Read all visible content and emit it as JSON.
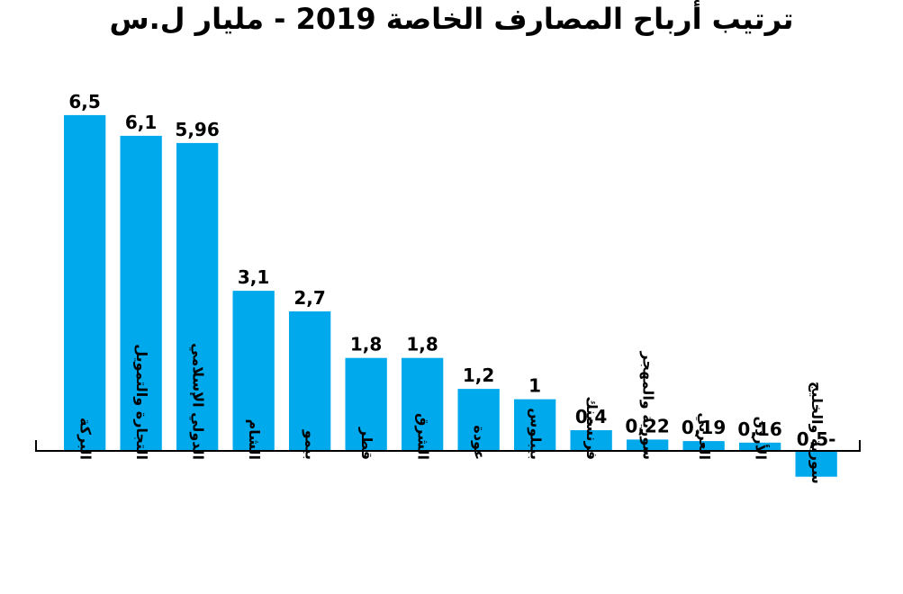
{
  "chart_data": {
    "type": "bar",
    "title": "ترتيب أرباح المصارف الخاصة 2019 - مليار ل.س",
    "xlabel": "",
    "ylabel": "",
    "ylim": [
      -0.7,
      7.0
    ],
    "grid": false,
    "bar_color": "#00a9ec",
    "categories": [
      "البركة",
      "التجارة والتمويل",
      "الدولي الإسلامي",
      "الشام",
      "بيمو",
      "قطر",
      "الشرق",
      "عودة",
      "بيبلوس",
      "فرنسبنك",
      "سورية والمهجر",
      "العربي",
      "الأردن",
      "سورية والخليج"
    ],
    "values": [
      6.5,
      6.1,
      5.96,
      3.1,
      2.7,
      1.8,
      1.8,
      1.2,
      1.0,
      0.4,
      0.22,
      0.19,
      0.16,
      -0.5
    ],
    "value_labels": [
      "6,5",
      "6,1",
      "5,96",
      "3,1",
      "2,7",
      "1,8",
      "1,8",
      "1,2",
      "1",
      "0,4",
      "0,22",
      "0,19",
      "0,16",
      "0,5-"
    ]
  }
}
